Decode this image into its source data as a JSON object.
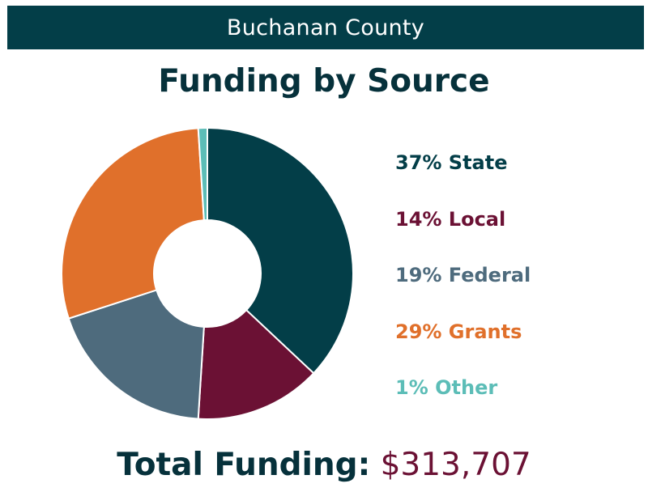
{
  "header": {
    "title": "Buchanan County"
  },
  "chart_data": {
    "type": "pie",
    "title": "Funding by Source",
    "categories": [
      "State",
      "Local",
      "Federal",
      "Grants",
      "Other"
    ],
    "values": [
      37,
      14,
      19,
      29,
      1
    ],
    "unit": "%",
    "legend_position": "right",
    "legend_labels": [
      "37% State",
      "14% Local",
      "19% Federal",
      "29% Grants",
      "1% Other"
    ],
    "colors": [
      "#033e48",
      "#6b1134",
      "#4e6b7d",
      "#e0702b",
      "#5cbdb7"
    ]
  },
  "total": {
    "label": "Total Funding:",
    "value": "$313,707"
  }
}
